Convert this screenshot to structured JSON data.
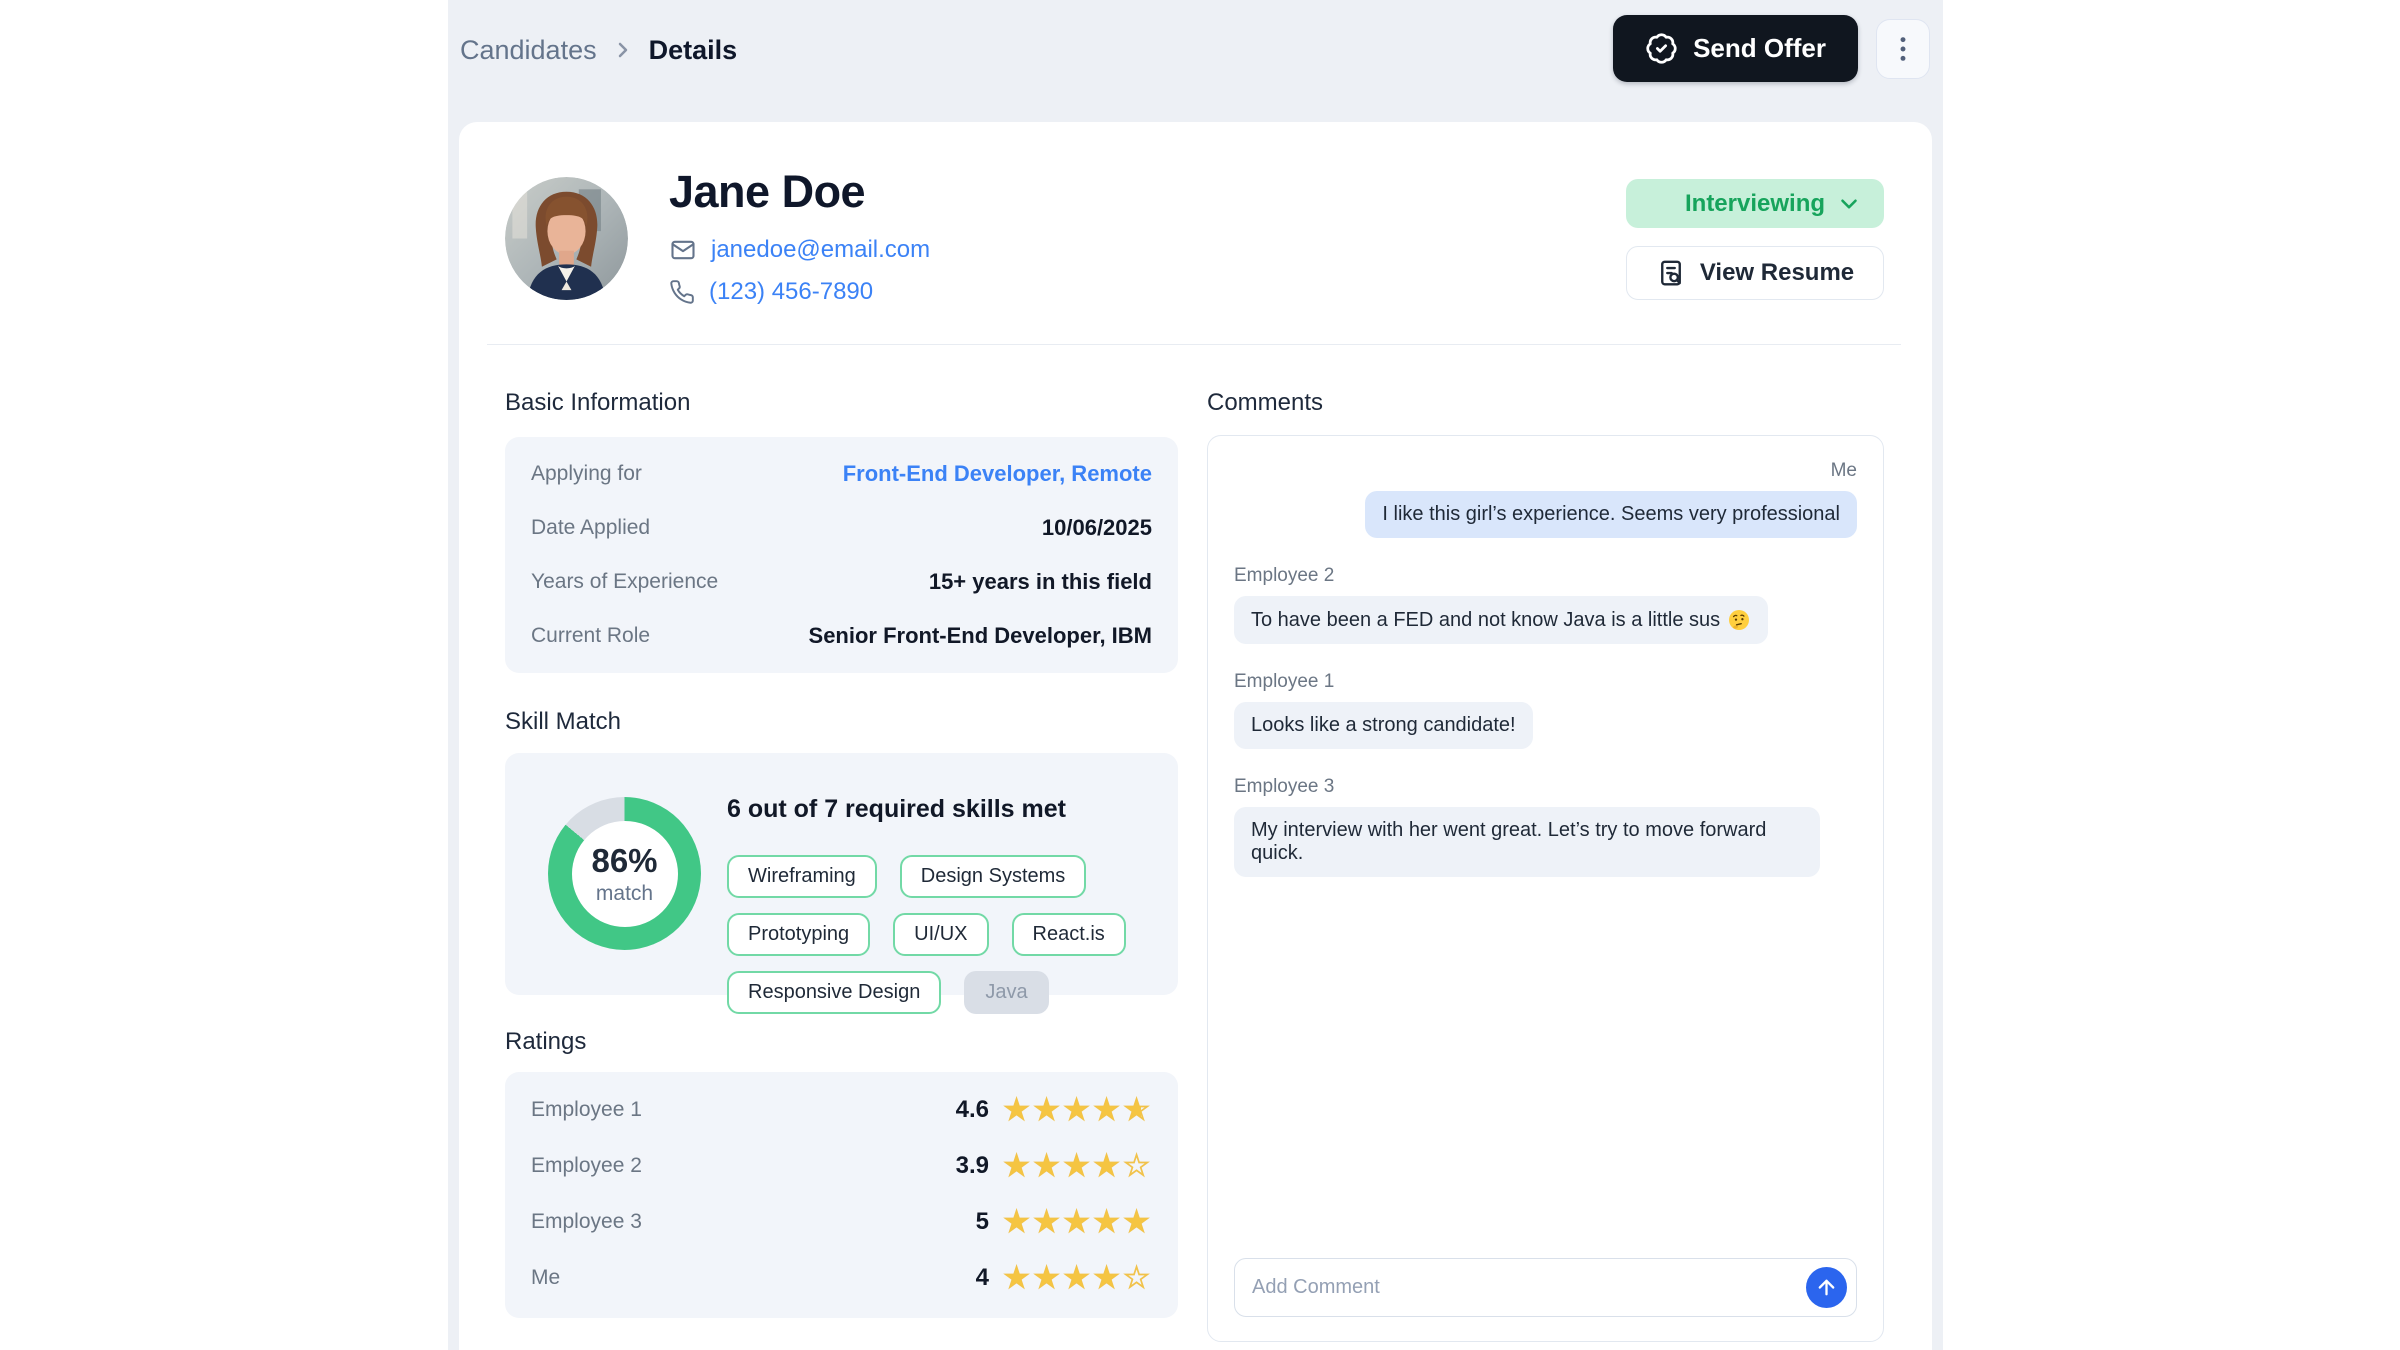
{
  "breadcrumb": {
    "section": "Candidates",
    "current": "Details"
  },
  "actions": {
    "send_offer": "Send Offer"
  },
  "candidate": {
    "name": "Jane Doe",
    "email": "janedoe@email.com",
    "phone": "(123) 456-7890",
    "status": "Interviewing",
    "view_resume": "View Resume"
  },
  "basic_info": {
    "title": "Basic Information",
    "rows": [
      {
        "label": "Applying for",
        "value": "Front-End Developer, Remote",
        "link": true
      },
      {
        "label": "Date Applied",
        "value": "10/06/2025",
        "link": false
      },
      {
        "label": "Years of Experience",
        "value": "15+ years in this field",
        "link": false
      },
      {
        "label": "Current Role",
        "value": "Senior Front-End Developer, IBM",
        "link": false
      }
    ]
  },
  "skill_match": {
    "title": "Skill Match",
    "percent": 86,
    "percent_label": "86%",
    "match_label": "match",
    "summary": "6 out of 7 required skills met",
    "skills": [
      {
        "label": "Wireframing",
        "met": true
      },
      {
        "label": "Design Systems",
        "met": true
      },
      {
        "label": "Prototyping",
        "met": true
      },
      {
        "label": "UI/UX",
        "met": true
      },
      {
        "label": "React.is",
        "met": true
      },
      {
        "label": "Responsive Design",
        "met": true
      },
      {
        "label": "Java",
        "met": false
      }
    ]
  },
  "ratings": {
    "title": "Ratings",
    "max": 5,
    "rows": [
      {
        "label": "Employee 1",
        "value": 4.6,
        "display": "4.6"
      },
      {
        "label": "Employee 2",
        "value": 3.9,
        "display": "3.9"
      },
      {
        "label": "Employee 3",
        "value": 5,
        "display": "5"
      },
      {
        "label": "Me",
        "value": 4,
        "display": "4"
      }
    ]
  },
  "comments": {
    "title": "Comments",
    "items": [
      {
        "author": "Me",
        "right": true,
        "text": "I like this girl’s experience. Seems very professional",
        "emoji": false
      },
      {
        "author": "Employee 2",
        "right": false,
        "text": "To have been a FED and not know Java is a little sus",
        "emoji": true,
        "emoji_char": "🤔"
      },
      {
        "author": "Employee 1",
        "right": false,
        "text": "Looks like a strong candidate!",
        "emoji": false
      },
      {
        "author": "Employee 3",
        "right": false,
        "text": "My interview with her went great. Let’s try to move forward quick.",
        "emoji": false
      }
    ],
    "input_placeholder": "Add Comment"
  },
  "colors": {
    "status_bg": "#c7f0da",
    "status_text": "#17a45c",
    "donut_met": "#41c786",
    "donut_unmet": "#d8dde4",
    "chip_border": "#72d9a6",
    "star": "#f5c542",
    "link": "#3b82f6",
    "send_offer_bg": "#10161f",
    "send_button": "#2b65ee",
    "me_bubble": "#d9e6fb",
    "other_bubble": "#eef2f8"
  }
}
